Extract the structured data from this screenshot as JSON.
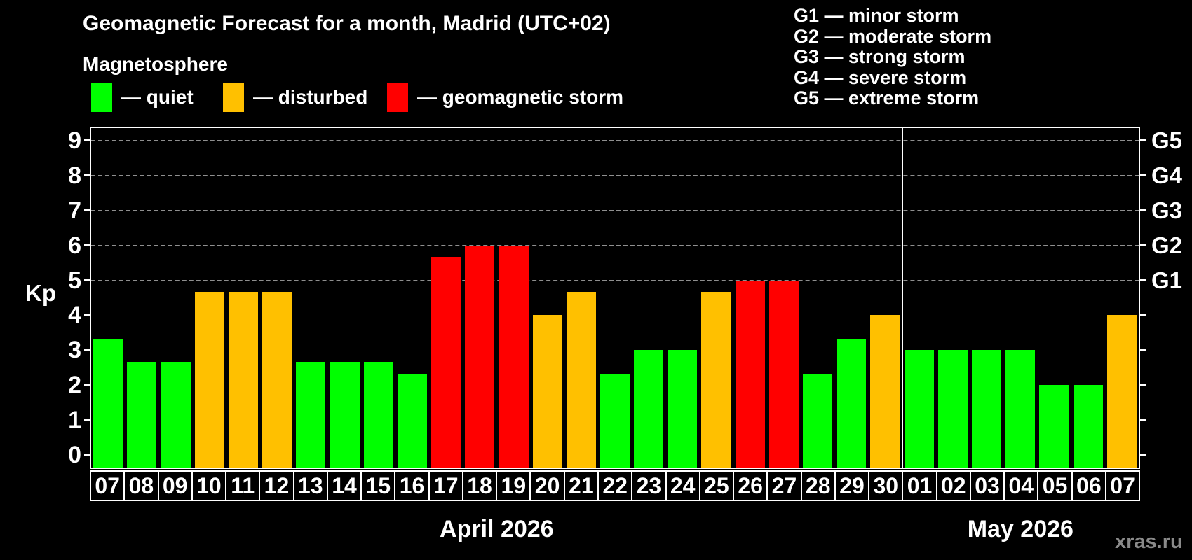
{
  "title": "Geomagnetic Forecast for a month, Madrid (UTC+02)",
  "subtitle": "Magnetosphere",
  "legend": {
    "items": [
      {
        "name": "quiet",
        "label": "— quiet",
        "color": "#00ff00"
      },
      {
        "name": "disturbed",
        "label": "— disturbed",
        "color": "#ffc000"
      },
      {
        "name": "storm",
        "label": "— geomagnetic storm",
        "color": "#ff0000"
      }
    ]
  },
  "g_scale_legend": [
    {
      "code": "G1",
      "label": "G1 — minor storm"
    },
    {
      "code": "G2",
      "label": "G2 — moderate storm"
    },
    {
      "code": "G3",
      "label": "G3 — strong storm"
    },
    {
      "code": "G4",
      "label": "G4 — severe storm"
    },
    {
      "code": "G5",
      "label": "G5 — extreme storm"
    }
  ],
  "watermark": "xras.ru",
  "chart_data": {
    "type": "bar",
    "title": "Geomagnetic Forecast for a month, Madrid (UTC+02)",
    "ylabel": "Kp",
    "y_range": [
      -0.36,
      9.36
    ],
    "y_ticks": [
      0,
      1,
      2,
      3,
      4,
      5,
      6,
      7,
      8,
      9
    ],
    "gridlines": [
      5,
      6,
      7,
      8,
      9
    ],
    "grid": "dashed horizontal at storm levels only",
    "legend_position": "top-left",
    "right_axis_labels": [
      {
        "value": 5,
        "label": "G1"
      },
      {
        "value": 6,
        "label": "G2"
      },
      {
        "value": 7,
        "label": "G3"
      },
      {
        "value": 8,
        "label": "G4"
      },
      {
        "value": 9,
        "label": "G5"
      }
    ],
    "colors": {
      "quiet": "#00ff00",
      "disturbed": "#ffc000",
      "storm": "#ff0000"
    },
    "months": [
      {
        "label": "April 2026",
        "slug": "april-2026",
        "days": 24
      },
      {
        "label": "May 2026",
        "slug": "may-2026",
        "days": 7
      }
    ],
    "bars": [
      {
        "day": "07",
        "kp": 3.33,
        "status": "quiet"
      },
      {
        "day": "08",
        "kp": 2.67,
        "status": "quiet"
      },
      {
        "day": "09",
        "kp": 2.67,
        "status": "quiet"
      },
      {
        "day": "10",
        "kp": 4.67,
        "status": "disturbed"
      },
      {
        "day": "11",
        "kp": 4.67,
        "status": "disturbed"
      },
      {
        "day": "12",
        "kp": 4.67,
        "status": "disturbed"
      },
      {
        "day": "13",
        "kp": 2.67,
        "status": "quiet"
      },
      {
        "day": "14",
        "kp": 2.67,
        "status": "quiet"
      },
      {
        "day": "15",
        "kp": 2.67,
        "status": "quiet"
      },
      {
        "day": "16",
        "kp": 2.33,
        "status": "quiet"
      },
      {
        "day": "17",
        "kp": 5.67,
        "status": "storm"
      },
      {
        "day": "18",
        "kp": 6.0,
        "status": "storm"
      },
      {
        "day": "19",
        "kp": 6.0,
        "status": "storm"
      },
      {
        "day": "20",
        "kp": 4.0,
        "status": "disturbed"
      },
      {
        "day": "21",
        "kp": 4.67,
        "status": "disturbed"
      },
      {
        "day": "22",
        "kp": 2.33,
        "status": "quiet"
      },
      {
        "day": "23",
        "kp": 3.0,
        "status": "quiet"
      },
      {
        "day": "24",
        "kp": 3.0,
        "status": "quiet"
      },
      {
        "day": "25",
        "kp": 4.67,
        "status": "disturbed"
      },
      {
        "day": "26",
        "kp": 5.0,
        "status": "storm"
      },
      {
        "day": "27",
        "kp": 5.0,
        "status": "storm"
      },
      {
        "day": "28",
        "kp": 2.33,
        "status": "quiet"
      },
      {
        "day": "29",
        "kp": 3.33,
        "status": "quiet"
      },
      {
        "day": "30",
        "kp": 4.0,
        "status": "disturbed"
      },
      {
        "day": "01",
        "kp": 3.0,
        "status": "quiet"
      },
      {
        "day": "02",
        "kp": 3.0,
        "status": "quiet"
      },
      {
        "day": "03",
        "kp": 3.0,
        "status": "quiet"
      },
      {
        "day": "04",
        "kp": 3.0,
        "status": "quiet"
      },
      {
        "day": "05",
        "kp": 2.0,
        "status": "quiet"
      },
      {
        "day": "06",
        "kp": 2.0,
        "status": "quiet"
      },
      {
        "day": "07",
        "kp": 4.0,
        "status": "disturbed"
      }
    ]
  }
}
